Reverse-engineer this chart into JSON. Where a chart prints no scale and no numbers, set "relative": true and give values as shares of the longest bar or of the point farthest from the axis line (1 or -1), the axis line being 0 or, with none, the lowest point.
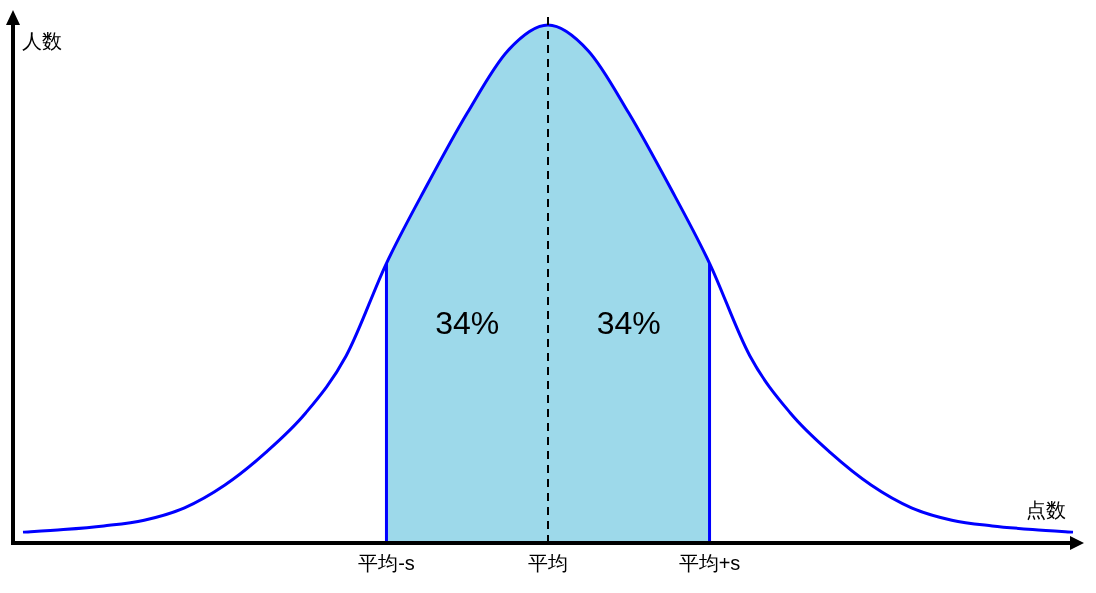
{
  "chart_data": {
    "type": "line",
    "relative": true,
    "xlabel": "点数",
    "ylabel": "人数",
    "categories": [
      null,
      null,
      null,
      null,
      null,
      null,
      null,
      null,
      null,
      "平均-s",
      null,
      null,
      null,
      "平均",
      null,
      null,
      null,
      "平均+s",
      null,
      null,
      null,
      null,
      null,
      null,
      null,
      null,
      null
    ],
    "series": [
      {
        "type": "area",
        "color": "#9dd9ea",
        "values": [
          null,
          null,
          null,
          null,
          null,
          null,
          null,
          null,
          null,
          0.54,
          0.69,
          0.83,
          0.95,
          1.0,
          0.95,
          0.83,
          0.69,
          0.54,
          null,
          null,
          null,
          null,
          null,
          null,
          null,
          null,
          null
        ]
      },
      {
        "type": "line",
        "color": "#0000ff",
        "values": [
          0.021,
          0.026,
          0.033,
          0.044,
          0.068,
          0.112,
          0.174,
          0.251,
          0.361,
          0.54,
          0.69,
          0.83,
          0.95,
          1.0,
          0.95,
          0.83,
          0.69,
          0.54,
          0.361,
          0.251,
          0.174,
          0.112,
          0.068,
          0.044,
          0.033,
          0.026,
          0.021
        ]
      }
    ],
    "ref_lines": [
      {
        "axis": "x",
        "value": "平均",
        "line_style": "dashed",
        "color": "#000000"
      }
    ],
    "annotations": [
      "34%",
      "34%"
    ]
  }
}
